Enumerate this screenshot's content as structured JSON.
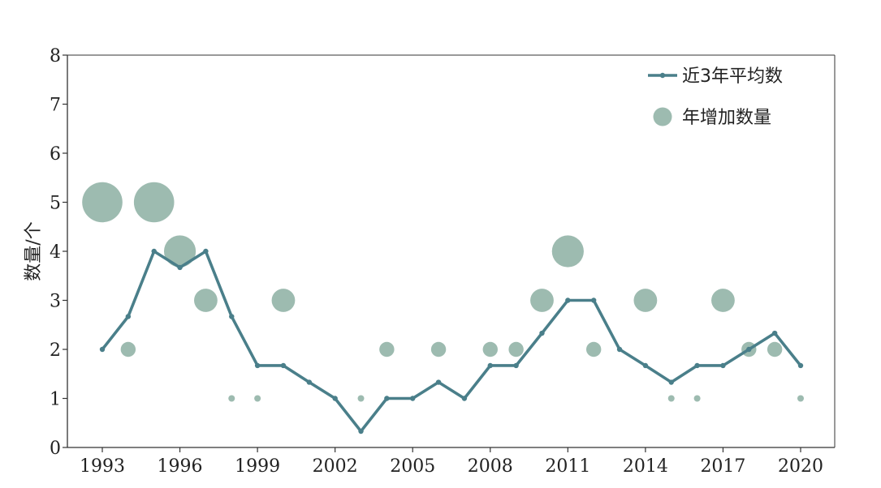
{
  "chart_data": {
    "type": "line+scatter",
    "ylabel": "数量/个",
    "xlabel": "",
    "title": "",
    "ylim": [
      0,
      8
    ],
    "yticks": [
      "0",
      "1",
      "2",
      "3",
      "4",
      "5",
      "6",
      "7",
      "8"
    ],
    "xlim": [
      1993,
      2020
    ],
    "xticks": [
      "1993",
      "1996",
      "1999",
      "2002",
      "2005",
      "2008",
      "2011",
      "2014",
      "2017",
      "2020"
    ],
    "grid": false,
    "legend_position": "top-right",
    "legend": [
      "近3年平均数",
      "年增加数量"
    ],
    "colors": {
      "line": "#4a7f8a",
      "bubble": "#9dbbb0",
      "axis": "#333333"
    },
    "series": [
      {
        "name": "近3年平均数",
        "kind": "line",
        "x": [
          1993,
          1994,
          1995,
          1996,
          1997,
          1998,
          1999,
          2000,
          2001,
          2002,
          2003,
          2004,
          2005,
          2006,
          2007,
          2008,
          2009,
          2010,
          2011,
          2012,
          2013,
          2014,
          2015,
          2016,
          2017,
          2018,
          2019,
          2020
        ],
        "y": [
          2,
          2.67,
          4,
          3.67,
          4,
          2.67,
          1.67,
          1.67,
          1.33,
          1,
          0.33,
          1,
          1,
          1.33,
          1,
          1.67,
          1.67,
          2.33,
          3,
          3,
          2,
          1.67,
          1.33,
          1.67,
          1.67,
          2,
          2.33,
          1.67
        ]
      },
      {
        "name": "年增加数量",
        "kind": "bubble",
        "x": [
          1993,
          1994,
          1995,
          1996,
          1997,
          1998,
          1999,
          2000,
          2003,
          2004,
          2006,
          2008,
          2009,
          2010,
          2011,
          2012,
          2014,
          2015,
          2016,
          2017,
          2018,
          2019,
          2020
        ],
        "y": [
          5,
          2,
          5,
          4,
          3,
          1,
          1,
          3,
          1,
          2,
          2,
          2,
          2,
          3,
          4,
          2,
          3,
          1,
          1,
          3,
          2,
          2,
          1
        ]
      }
    ]
  }
}
